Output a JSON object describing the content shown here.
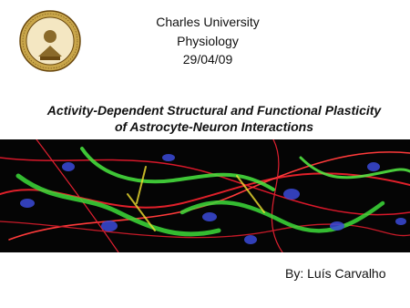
{
  "header": {
    "institution": "Charles University",
    "department": "Physiology",
    "date": "29/04/09"
  },
  "title": [
    "Activity-Dependent Structural and Functional Plasticity",
    "of Astrocyte-Neuron Interactions"
  ],
  "author": "By: Luís Carvalho"
}
